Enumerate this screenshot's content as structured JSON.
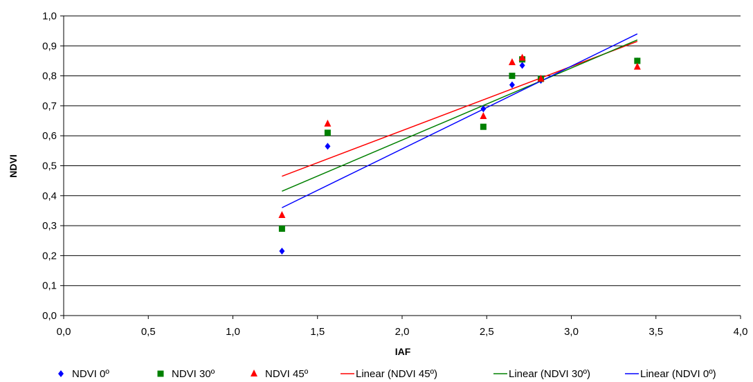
{
  "chart_data": {
    "type": "scatter",
    "title": "",
    "xlabel": "IAF",
    "ylabel": "NDVI",
    "xlim": [
      0.0,
      4.0
    ],
    "ylim": [
      0.0,
      1.0
    ],
    "x_ticks": [
      0.0,
      0.5,
      1.0,
      1.5,
      2.0,
      2.5,
      3.0,
      3.5,
      4.0
    ],
    "y_ticks": [
      0.0,
      0.1,
      0.2,
      0.3,
      0.4,
      0.5,
      0.6,
      0.7,
      0.8,
      0.9,
      1.0
    ],
    "x_tick_labels": [
      "0,0",
      "0,5",
      "1,0",
      "1,5",
      "2,0",
      "2,5",
      "3,0",
      "3,5",
      "4,0"
    ],
    "y_tick_labels": [
      "0,0",
      "0,1",
      "0,2",
      "0,3",
      "0,4",
      "0,5",
      "0,6",
      "0,7",
      "0,8",
      "0,9",
      "1,0"
    ],
    "grid": "horizontal",
    "legend_position": "bottom",
    "series": [
      {
        "name": "NDVI 0º",
        "marker": "diamond",
        "color": "#0000ff",
        "x": [
          1.29,
          1.56,
          2.48,
          2.65,
          2.71,
          2.82,
          3.39
        ],
        "y": [
          0.215,
          0.565,
          0.69,
          0.77,
          0.835,
          0.785,
          0.85
        ]
      },
      {
        "name": "NDVI 30º",
        "marker": "square",
        "color": "#008000",
        "x": [
          1.29,
          1.56,
          2.48,
          2.65,
          2.71,
          2.82,
          3.39
        ],
        "y": [
          0.29,
          0.61,
          0.63,
          0.8,
          0.855,
          0.79,
          0.85
        ]
      },
      {
        "name": "NDVI 45º",
        "marker": "triangle",
        "color": "#ff0000",
        "x": [
          1.29,
          1.56,
          2.48,
          2.65,
          2.71,
          2.82,
          3.39
        ],
        "y": [
          0.335,
          0.64,
          0.665,
          0.845,
          0.86,
          0.79,
          0.83
        ]
      }
    ],
    "trendlines": [
      {
        "name": "Linear (NDVI 45º)",
        "color": "#ff0000",
        "x": [
          1.29,
          3.39
        ],
        "y": [
          0.465,
          0.915
        ]
      },
      {
        "name": "Linear (NDVI 30º)",
        "color": "#008000",
        "x": [
          1.29,
          3.39
        ],
        "y": [
          0.415,
          0.92
        ]
      },
      {
        "name": "Linear (NDVI 0º)",
        "color": "#0000ff",
        "x": [
          1.29,
          3.39
        ],
        "y": [
          0.36,
          0.94
        ]
      }
    ],
    "legend": [
      "NDVI 0º",
      "NDVI 30º",
      "NDVI 45º",
      "Linear (NDVI 45º)",
      "Linear (NDVI 30º)",
      "Linear (NDVI 0º)"
    ]
  }
}
